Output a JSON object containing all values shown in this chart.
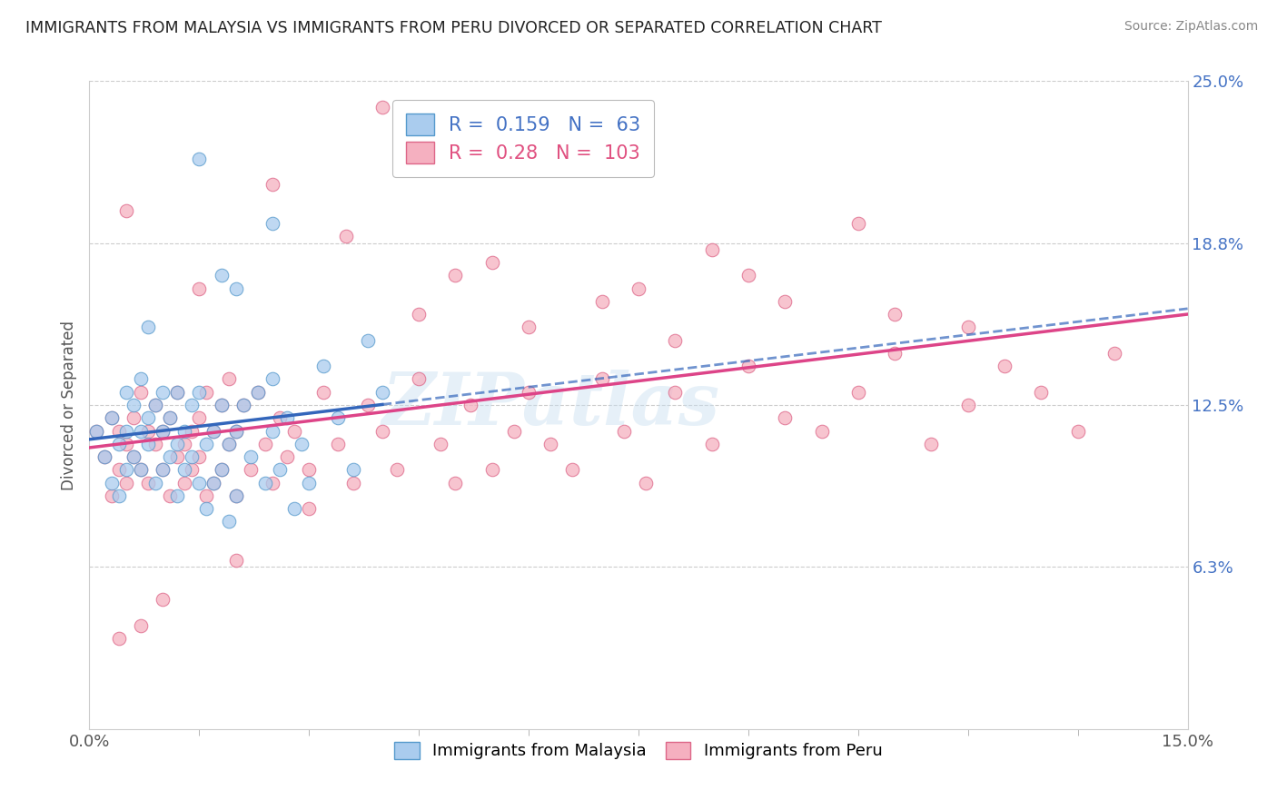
{
  "title": "IMMIGRANTS FROM MALAYSIA VS IMMIGRANTS FROM PERU DIVORCED OR SEPARATED CORRELATION CHART",
  "source": "Source: ZipAtlas.com",
  "ylabel": "Divorced or Separated",
  "xlabel": "",
  "xlim": [
    0.0,
    0.15
  ],
  "ylim": [
    0.0,
    0.25
  ],
  "xticks": [
    0.0,
    0.15
  ],
  "xtick_labels": [
    "0.0%",
    "15.0%"
  ],
  "ytick_vals": [
    0.0625,
    0.125,
    0.1875,
    0.25
  ],
  "ytick_labels": [
    "6.3%",
    "12.5%",
    "18.8%",
    "25.0%"
  ],
  "blue_R": 0.159,
  "blue_N": 63,
  "pink_R": 0.28,
  "pink_N": 103,
  "blue_color": "#aaccee",
  "pink_color": "#f5b0c0",
  "blue_edge": "#5599cc",
  "pink_edge": "#dd6688",
  "watermark": "ZIPatlas",
  "legend_label_blue": "Immigrants from Malaysia",
  "legend_label_pink": "Immigrants from Peru",
  "blue_trend_color": "#3366bb",
  "pink_trend_color": "#dd4488",
  "blue_x": [
    0.001,
    0.002,
    0.003,
    0.003,
    0.004,
    0.004,
    0.005,
    0.005,
    0.005,
    0.006,
    0.006,
    0.007,
    0.007,
    0.007,
    0.008,
    0.008,
    0.009,
    0.009,
    0.01,
    0.01,
    0.01,
    0.011,
    0.011,
    0.012,
    0.012,
    0.013,
    0.013,
    0.014,
    0.014,
    0.015,
    0.015,
    0.016,
    0.016,
    0.017,
    0.017,
    0.018,
    0.018,
    0.019,
    0.019,
    0.02,
    0.02,
    0.021,
    0.022,
    0.023,
    0.024,
    0.025,
    0.025,
    0.026,
    0.027,
    0.028,
    0.029,
    0.03,
    0.032,
    0.034,
    0.036,
    0.038,
    0.04,
    0.015,
    0.02,
    0.025,
    0.008,
    0.012,
    0.018
  ],
  "blue_y": [
    0.115,
    0.105,
    0.095,
    0.12,
    0.11,
    0.09,
    0.115,
    0.1,
    0.13,
    0.105,
    0.125,
    0.1,
    0.115,
    0.135,
    0.11,
    0.12,
    0.095,
    0.125,
    0.1,
    0.115,
    0.13,
    0.105,
    0.12,
    0.11,
    0.09,
    0.115,
    0.1,
    0.125,
    0.105,
    0.095,
    0.13,
    0.11,
    0.085,
    0.115,
    0.095,
    0.125,
    0.1,
    0.11,
    0.08,
    0.115,
    0.09,
    0.125,
    0.105,
    0.13,
    0.095,
    0.115,
    0.135,
    0.1,
    0.12,
    0.085,
    0.11,
    0.095,
    0.14,
    0.12,
    0.1,
    0.15,
    0.13,
    0.22,
    0.17,
    0.195,
    0.155,
    0.13,
    0.175
  ],
  "pink_x": [
    0.001,
    0.002,
    0.003,
    0.003,
    0.004,
    0.004,
    0.005,
    0.005,
    0.006,
    0.006,
    0.007,
    0.007,
    0.008,
    0.008,
    0.009,
    0.009,
    0.01,
    0.01,
    0.011,
    0.011,
    0.012,
    0.012,
    0.013,
    0.013,
    0.014,
    0.014,
    0.015,
    0.015,
    0.016,
    0.016,
    0.017,
    0.017,
    0.018,
    0.018,
    0.019,
    0.019,
    0.02,
    0.02,
    0.021,
    0.022,
    0.023,
    0.024,
    0.025,
    0.026,
    0.027,
    0.028,
    0.03,
    0.032,
    0.034,
    0.036,
    0.038,
    0.04,
    0.042,
    0.045,
    0.048,
    0.05,
    0.052,
    0.055,
    0.058,
    0.06,
    0.063,
    0.066,
    0.07,
    0.073,
    0.076,
    0.08,
    0.085,
    0.09,
    0.095,
    0.1,
    0.105,
    0.11,
    0.115,
    0.12,
    0.125,
    0.13,
    0.135,
    0.14,
    0.005,
    0.015,
    0.025,
    0.035,
    0.045,
    0.055,
    0.065,
    0.075,
    0.085,
    0.095,
    0.105,
    0.04,
    0.05,
    0.06,
    0.07,
    0.08,
    0.09,
    0.11,
    0.12,
    0.03,
    0.02,
    0.01,
    0.007,
    0.004
  ],
  "pink_y": [
    0.115,
    0.105,
    0.12,
    0.09,
    0.115,
    0.1,
    0.11,
    0.095,
    0.12,
    0.105,
    0.1,
    0.13,
    0.115,
    0.095,
    0.11,
    0.125,
    0.1,
    0.115,
    0.09,
    0.12,
    0.105,
    0.13,
    0.11,
    0.095,
    0.115,
    0.1,
    0.12,
    0.105,
    0.13,
    0.09,
    0.115,
    0.095,
    0.125,
    0.1,
    0.11,
    0.135,
    0.115,
    0.09,
    0.125,
    0.1,
    0.13,
    0.11,
    0.095,
    0.12,
    0.105,
    0.115,
    0.1,
    0.13,
    0.11,
    0.095,
    0.125,
    0.115,
    0.1,
    0.135,
    0.11,
    0.095,
    0.125,
    0.1,
    0.115,
    0.13,
    0.11,
    0.1,
    0.135,
    0.115,
    0.095,
    0.13,
    0.11,
    0.14,
    0.12,
    0.115,
    0.13,
    0.145,
    0.11,
    0.125,
    0.14,
    0.13,
    0.115,
    0.145,
    0.2,
    0.17,
    0.21,
    0.19,
    0.16,
    0.18,
    0.22,
    0.17,
    0.185,
    0.165,
    0.195,
    0.24,
    0.175,
    0.155,
    0.165,
    0.15,
    0.175,
    0.16,
    0.155,
    0.085,
    0.065,
    0.05,
    0.04,
    0.035
  ]
}
